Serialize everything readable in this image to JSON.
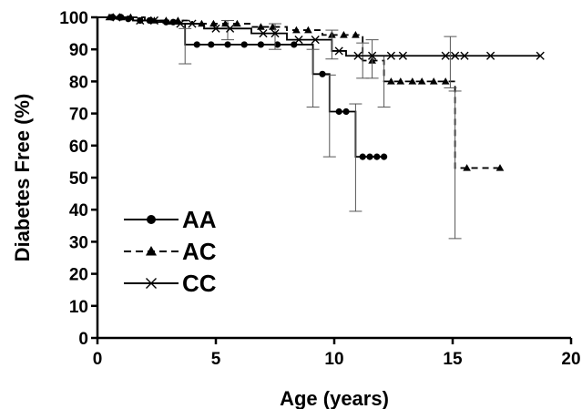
{
  "chart_data": {
    "type": "line",
    "title": "",
    "xlabel": "Age (years)",
    "ylabel": "Diabetes Free (%)",
    "xlim": [
      0,
      20
    ],
    "ylim": [
      0,
      100
    ],
    "x_ticks": [
      "0",
      "5",
      "10",
      "15",
      "20"
    ],
    "y_ticks": [
      "0",
      "10",
      "20",
      "30",
      "40",
      "50",
      "60",
      "70",
      "80",
      "90",
      "100"
    ],
    "grid": false,
    "legend_position": "bottom-left",
    "series": [
      {
        "name": "AA",
        "line_style": "solid",
        "marker": "circle",
        "color": "#000000",
        "steps": [
          [
            0,
            100
          ],
          [
            0.8,
            99.5
          ],
          [
            1.5,
            99
          ],
          [
            2.5,
            98.5
          ],
          [
            3.5,
            98
          ],
          [
            3.7,
            91.5
          ],
          [
            9.1,
            91.5
          ],
          [
            9.1,
            82.3
          ],
          [
            9.8,
            82.3
          ],
          [
            9.8,
            70.6
          ],
          [
            10.9,
            70.6
          ],
          [
            10.9,
            56.5
          ],
          [
            12.1,
            56.5
          ]
        ],
        "censored": [
          [
            0.6,
            100
          ],
          [
            1.0,
            100
          ],
          [
            1.3,
            99.5
          ],
          [
            1.8,
            99
          ],
          [
            2.2,
            99
          ],
          [
            2.9,
            98.5
          ],
          [
            3.2,
            98.5
          ],
          [
            4.2,
            91.5
          ],
          [
            4.8,
            91.5
          ],
          [
            5.5,
            91.5
          ],
          [
            6.2,
            91.5
          ],
          [
            6.9,
            91.5
          ],
          [
            7.6,
            91.5
          ],
          [
            8.3,
            91.5
          ],
          [
            9.5,
            82.3
          ],
          [
            10.2,
            70.6
          ],
          [
            10.5,
            70.6
          ],
          [
            11.2,
            56.5
          ],
          [
            11.5,
            56.5
          ],
          [
            11.8,
            56.5
          ],
          [
            12.1,
            56.5
          ]
        ],
        "error_bars": [
          {
            "x": 3.7,
            "low": 85.5,
            "high": 96.5
          },
          {
            "x": 9.1,
            "low": 72,
            "high": 90
          },
          {
            "x": 9.8,
            "low": 56.5,
            "high": 82
          },
          {
            "x": 10.9,
            "low": 39.5,
            "high": 73
          }
        ]
      },
      {
        "name": "AC",
        "line_style": "dashed",
        "marker": "triangle",
        "color": "#000000",
        "steps": [
          [
            0,
            100
          ],
          [
            2.0,
            99
          ],
          [
            4.0,
            98
          ],
          [
            6.5,
            97
          ],
          [
            8.0,
            96
          ],
          [
            9.5,
            94.5
          ],
          [
            11.2,
            94.5
          ],
          [
            11.2,
            86.5
          ],
          [
            12.1,
            86.5
          ],
          [
            12.1,
            80
          ],
          [
            15.1,
            80
          ],
          [
            15.1,
            53
          ],
          [
            17.0,
            53
          ]
        ],
        "censored": [
          [
            0.5,
            100
          ],
          [
            1.0,
            100
          ],
          [
            1.4,
            100
          ],
          [
            2.4,
            99
          ],
          [
            2.9,
            99
          ],
          [
            3.4,
            99
          ],
          [
            4.4,
            98
          ],
          [
            4.9,
            98
          ],
          [
            5.4,
            98
          ],
          [
            5.9,
            98
          ],
          [
            6.9,
            97
          ],
          [
            7.4,
            97
          ],
          [
            8.4,
            96
          ],
          [
            8.9,
            96
          ],
          [
            9.9,
            94.5
          ],
          [
            10.4,
            94.5
          ],
          [
            10.9,
            94.5
          ],
          [
            11.6,
            86.5
          ],
          [
            12.4,
            80
          ],
          [
            12.8,
            80
          ],
          [
            13.3,
            80
          ],
          [
            13.7,
            80
          ],
          [
            14.2,
            80
          ],
          [
            14.7,
            80
          ],
          [
            15.6,
            53
          ],
          [
            17.0,
            53
          ]
        ],
        "error_bars": [
          {
            "x": 11.2,
            "low": 81,
            "high": 92
          },
          {
            "x": 12.1,
            "low": 72,
            "high": 88
          },
          {
            "x": 15.1,
            "low": 31,
            "high": 77
          }
        ]
      },
      {
        "name": "CC",
        "line_style": "solid",
        "marker": "x",
        "color": "#000000",
        "steps": [
          [
            0,
            100
          ],
          [
            1.5,
            99
          ],
          [
            3.0,
            98
          ],
          [
            4.5,
            96.5
          ],
          [
            6.5,
            95
          ],
          [
            8.0,
            93
          ],
          [
            9.9,
            93
          ],
          [
            9.9,
            89.5
          ],
          [
            10.5,
            89.5
          ],
          [
            10.5,
            88
          ],
          [
            18.7,
            88
          ]
        ],
        "censored": [
          [
            0.8,
            100
          ],
          [
            1.8,
            99
          ],
          [
            2.4,
            99
          ],
          [
            3.5,
            98
          ],
          [
            4.0,
            98
          ],
          [
            5.0,
            96.5
          ],
          [
            5.6,
            96.5
          ],
          [
            7.0,
            95
          ],
          [
            7.5,
            95
          ],
          [
            8.5,
            93
          ],
          [
            9.2,
            93
          ],
          [
            10.2,
            89.5
          ],
          [
            11.0,
            88
          ],
          [
            11.6,
            88
          ],
          [
            12.4,
            88
          ],
          [
            12.9,
            88
          ],
          [
            14.7,
            88
          ],
          [
            15.1,
            88
          ],
          [
            15.5,
            88
          ],
          [
            16.6,
            88
          ],
          [
            18.7,
            88
          ]
        ],
        "error_bars": [
          {
            "x": 5.5,
            "low": 93,
            "high": 99
          },
          {
            "x": 7.5,
            "low": 90,
            "high": 98
          },
          {
            "x": 9.9,
            "low": 87,
            "high": 96
          },
          {
            "x": 11.6,
            "low": 81,
            "high": 93
          },
          {
            "x": 14.9,
            "low": 78,
            "high": 94
          }
        ]
      }
    ]
  }
}
